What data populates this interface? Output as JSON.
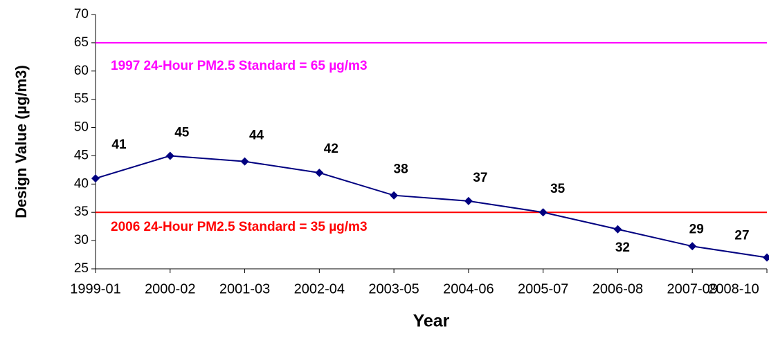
{
  "chart_data": {
    "type": "line",
    "categories": [
      "1999-01",
      "2000-02",
      "2001-03",
      "2002-04",
      "2003-05",
      "2004-06",
      "2005-07",
      "2006-08",
      "2007-09",
      "2008-10"
    ],
    "series": [
      {
        "name": "Design Value",
        "color": "#000080",
        "values": [
          41,
          45,
          44,
          42,
          38,
          37,
          35,
          32,
          29,
          27
        ]
      }
    ],
    "ylim": [
      25,
      70
    ],
    "yticks": [
      25,
      30,
      35,
      40,
      45,
      50,
      55,
      60,
      65,
      70
    ],
    "y_label": "Design Value (µg/m3)",
    "x_label": "Year",
    "reference_lines": [
      {
        "value": 65,
        "label": "1997 24-Hour PM2.5 Standard = 65 µg/m3",
        "color": "#ff00ff"
      },
      {
        "value": 35,
        "label": "2006 24-Hour PM2.5 Standard = 35 µg/m3",
        "color": "#ff0000"
      }
    ]
  }
}
